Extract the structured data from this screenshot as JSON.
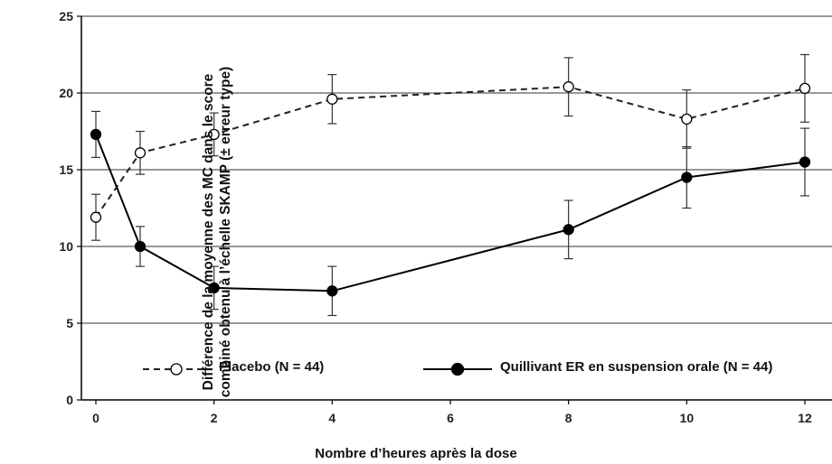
{
  "chart_data": {
    "type": "line",
    "xlabel": "Nombre d’heures après la dose",
    "ylabel_lines": [
      "Différence de la moyenne des MC dans le score",
      "combiné obtenu à l’échelle SKAMP (± erreur type)"
    ],
    "xlim": [
      0,
      12
    ],
    "ylim": [
      0,
      25
    ],
    "x_ticks": [
      0,
      2,
      4,
      6,
      8,
      10,
      12
    ],
    "y_ticks": [
      0,
      5,
      10,
      15,
      20,
      25
    ],
    "grid": "horizontal",
    "legend_position": "bottom-center",
    "series": [
      {
        "name": "Placebo (N = 44)",
        "style": "dashed",
        "marker": "open-circle",
        "color": "#222222",
        "x": [
          0,
          0.75,
          2,
          4,
          8,
          10,
          12
        ],
        "y": [
          11.9,
          16.1,
          17.3,
          19.6,
          20.4,
          18.3,
          20.3
        ],
        "err": [
          1.5,
          1.4,
          1.4,
          1.6,
          1.9,
          1.9,
          2.2
        ]
      },
      {
        "name": "Quillivant ER en suspension orale (N = 44)",
        "style": "solid",
        "marker": "filled-circle",
        "color": "#000000",
        "x": [
          0,
          0.75,
          2,
          4,
          8,
          10,
          12
        ],
        "y": [
          17.3,
          10.0,
          7.3,
          7.1,
          11.1,
          14.5,
          15.5
        ],
        "err": [
          1.5,
          1.3,
          1.4,
          1.6,
          1.9,
          2.0,
          2.2
        ]
      }
    ]
  }
}
